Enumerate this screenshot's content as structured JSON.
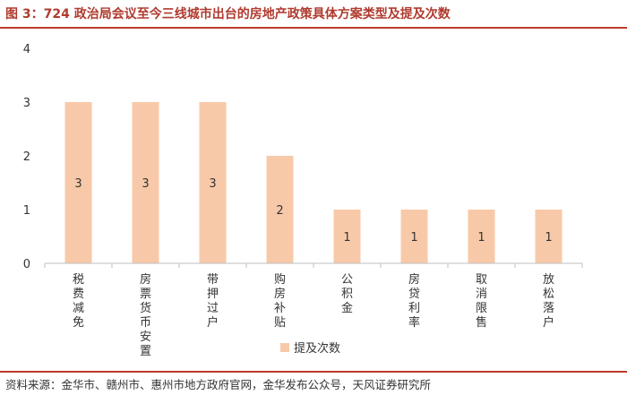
{
  "header": {
    "title": "图 3：724 政治局会议至今三线城市出台的房地产政策具体方案类型及提及次数"
  },
  "footer": {
    "source": "资料来源：金华市、赣州市、惠州市地方政府官网，金华发布公众号，天风证券研究所"
  },
  "chart_data": {
    "type": "bar",
    "categories": [
      "税费减免",
      "房票货币安置",
      "带押过户",
      "购房补贴",
      "公积金",
      "房贷利率",
      "取消限售",
      "放松落户"
    ],
    "series": [
      {
        "name": "提及次数",
        "values": [
          3,
          3,
          3,
          2,
          1,
          1,
          1,
          1
        ]
      }
    ],
    "yticks": [
      "0",
      "1",
      "2",
      "3",
      "4"
    ],
    "ylim": [
      0,
      4
    ],
    "grid": false,
    "legend": "bottom",
    "bar_color": "#f8c9a8",
    "axis_color": "#bfbfbf"
  }
}
